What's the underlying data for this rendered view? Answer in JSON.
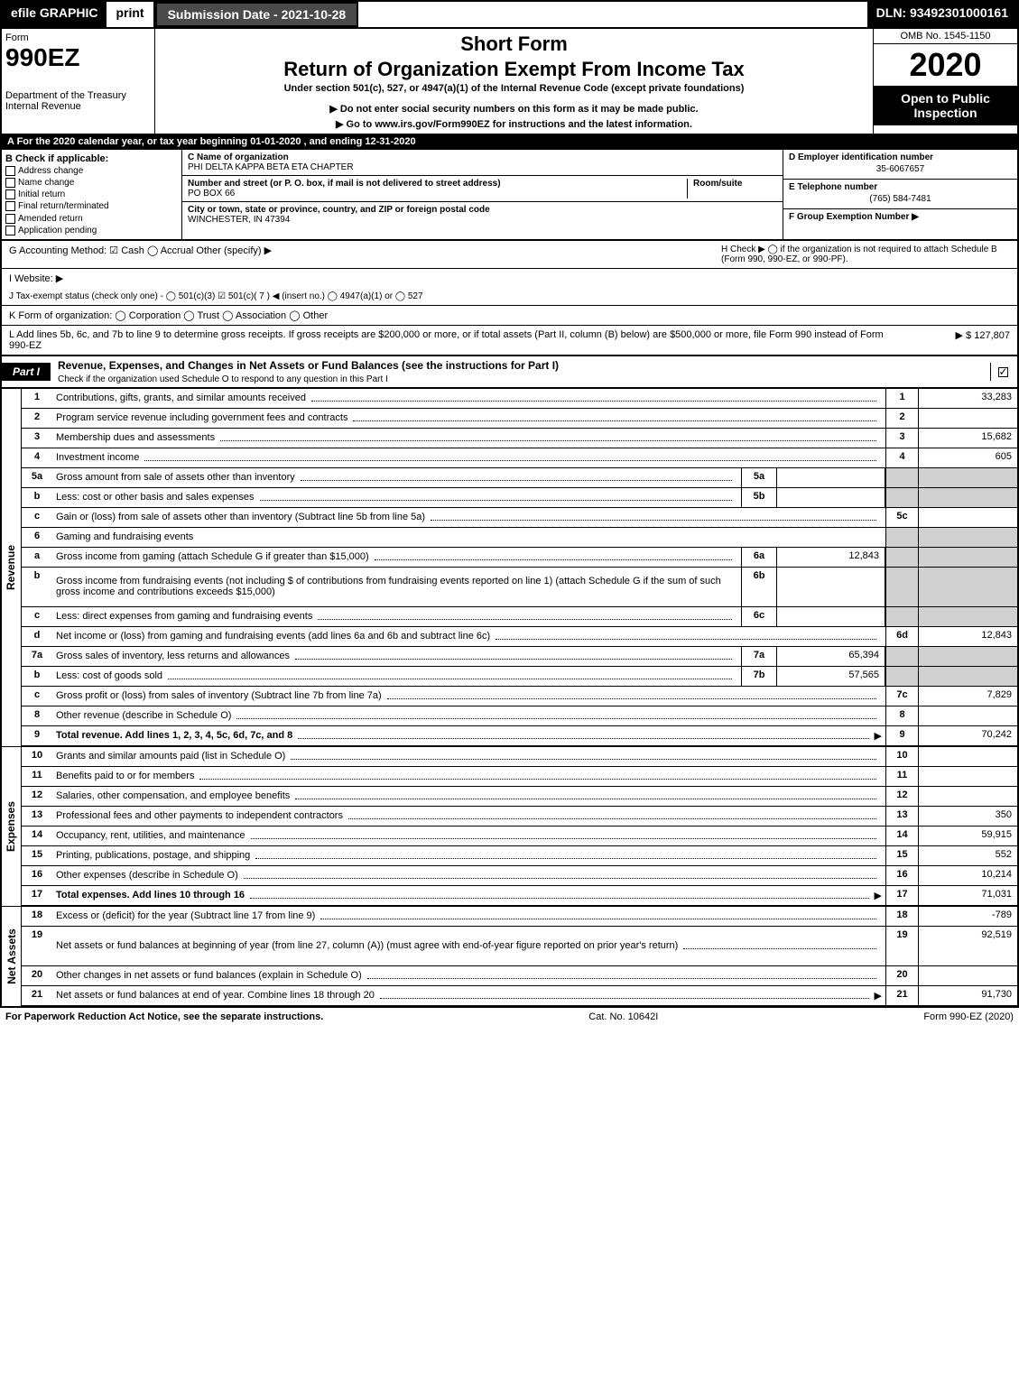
{
  "topbar": {
    "efile": "efile GRAPHIC",
    "print": "print",
    "subdate": "Submission Date - 2021-10-28",
    "dln": "DLN: 93492301000161"
  },
  "header": {
    "form_word": "Form",
    "form_num": "990EZ",
    "dept": "Department of the Treasury\nInternal Revenue",
    "title1": "Short Form",
    "title2": "Return of Organization Exempt From Income Tax",
    "sub": "Under section 501(c), 527, or 4947(a)(1) of the Internal Revenue Code (except private foundations)",
    "note": "▶ Do not enter social security numbers on this form as it may be made public.",
    "link": "▶ Go to www.irs.gov/Form990EZ for instructions and the latest information.",
    "omb": "OMB No. 1545-1150",
    "year": "2020",
    "open": "Open to Public Inspection"
  },
  "line_a": "A For the 2020 calendar year, or tax year beginning 01-01-2020 , and ending 12-31-2020",
  "box_b": {
    "header": "B Check if applicable:",
    "items": [
      "Address change",
      "Name change",
      "Initial return",
      "Final return/terminated",
      "Amended return",
      "Application pending"
    ]
  },
  "box_c": {
    "lbl": "C Name of organization",
    "name": "PHI DELTA KAPPA BETA ETA CHAPTER",
    "addr_lbl": "Number and street (or P. O. box, if mail is not delivered to street address)",
    "addr": "PO BOX 66",
    "room_lbl": "Room/suite",
    "city_lbl": "City or town, state or province, country, and ZIP or foreign postal code",
    "city": "WINCHESTER, IN  47394"
  },
  "box_d": {
    "lbl": "D Employer identification number",
    "val": "35-6067657"
  },
  "box_e": {
    "lbl": "E Telephone number",
    "val": "(765) 584-7481"
  },
  "box_f": {
    "lbl": "F Group Exemption Number ▶",
    "val": ""
  },
  "box_g": "G Accounting Method:  ☑ Cash  ◯ Accrual  Other (specify) ▶",
  "box_h": "H  Check ▶ ◯ if the organization is not required to attach Schedule B (Form 990, 990-EZ, or 990-PF).",
  "box_i": "I Website: ▶",
  "box_j": "J Tax-exempt status (check only one) - ◯ 501(c)(3)  ☑ 501(c)( 7 ) ◀ (insert no.)  ◯ 4947(a)(1) or  ◯ 527",
  "box_k": "K Form of organization:  ◯ Corporation  ◯ Trust  ◯ Association  ◯ Other",
  "box_l": {
    "text": "L Add lines 5b, 6c, and 7b to line 9 to determine gross receipts. If gross receipts are $200,000 or more, or if total assets (Part II, column (B) below) are $500,000 or more, file Form 990 instead of Form 990-EZ",
    "val": "▶ $ 127,807"
  },
  "part1": {
    "tag": "Part I",
    "title": "Revenue, Expenses, and Changes in Net Assets or Fund Balances (see the instructions for Part I)",
    "sub": "Check if the organization used Schedule O to respond to any question in this Part I",
    "checked": true
  },
  "revenue_label": "Revenue",
  "expenses_label": "Expenses",
  "netassets_label": "Net Assets",
  "rows": [
    {
      "n": "1",
      "d": "Contributions, gifts, grants, and similar amounts received",
      "rn": "1",
      "rv": "33,283"
    },
    {
      "n": "2",
      "d": "Program service revenue including government fees and contracts",
      "rn": "2",
      "rv": ""
    },
    {
      "n": "3",
      "d": "Membership dues and assessments",
      "rn": "3",
      "rv": "15,682"
    },
    {
      "n": "4",
      "d": "Investment income",
      "rn": "4",
      "rv": "605"
    },
    {
      "n": "5a",
      "d": "Gross amount from sale of assets other than inventory",
      "mn": "5a",
      "mv": "",
      "grey": true
    },
    {
      "n": "b",
      "d": "Less: cost or other basis and sales expenses",
      "mn": "5b",
      "mv": "",
      "grey": true
    },
    {
      "n": "c",
      "d": "Gain or (loss) from sale of assets other than inventory (Subtract line 5b from line 5a)",
      "rn": "5c",
      "rv": ""
    },
    {
      "n": "6",
      "d": "Gaming and fundraising events",
      "greyrow": true
    },
    {
      "n": "a",
      "d": "Gross income from gaming (attach Schedule G if greater than $15,000)",
      "mn": "6a",
      "mv": "12,843",
      "grey": true
    },
    {
      "n": "b",
      "d": "Gross income from fundraising events (not including $           of contributions from fundraising events reported on line 1) (attach Schedule G if the sum of such gross income and contributions exceeds $15,000)",
      "mn": "6b",
      "mv": "",
      "grey": true,
      "tall": true
    },
    {
      "n": "c",
      "d": "Less: direct expenses from gaming and fundraising events",
      "mn": "6c",
      "mv": "",
      "grey": true
    },
    {
      "n": "d",
      "d": "Net income or (loss) from gaming and fundraising events (add lines 6a and 6b and subtract line 6c)",
      "rn": "6d",
      "rv": "12,843"
    },
    {
      "n": "7a",
      "d": "Gross sales of inventory, less returns and allowances",
      "mn": "7a",
      "mv": "65,394",
      "grey": true
    },
    {
      "n": "b",
      "d": "Less: cost of goods sold",
      "mn": "7b",
      "mv": "57,565",
      "grey": true
    },
    {
      "n": "c",
      "d": "Gross profit or (loss) from sales of inventory (Subtract line 7b from line 7a)",
      "rn": "7c",
      "rv": "7,829"
    },
    {
      "n": "8",
      "d": "Other revenue (describe in Schedule O)",
      "rn": "8",
      "rv": ""
    },
    {
      "n": "9",
      "d": "Total revenue. Add lines 1, 2, 3, 4, 5c, 6d, 7c, and 8",
      "rn": "9",
      "rv": "70,242",
      "bold": true,
      "arrow": true
    }
  ],
  "exp_rows": [
    {
      "n": "10",
      "d": "Grants and similar amounts paid (list in Schedule O)",
      "rn": "10",
      "rv": ""
    },
    {
      "n": "11",
      "d": "Benefits paid to or for members",
      "rn": "11",
      "rv": ""
    },
    {
      "n": "12",
      "d": "Salaries, other compensation, and employee benefits",
      "rn": "12",
      "rv": ""
    },
    {
      "n": "13",
      "d": "Professional fees and other payments to independent contractors",
      "rn": "13",
      "rv": "350"
    },
    {
      "n": "14",
      "d": "Occupancy, rent, utilities, and maintenance",
      "rn": "14",
      "rv": "59,915"
    },
    {
      "n": "15",
      "d": "Printing, publications, postage, and shipping",
      "rn": "15",
      "rv": "552"
    },
    {
      "n": "16",
      "d": "Other expenses (describe in Schedule O)",
      "rn": "16",
      "rv": "10,214"
    },
    {
      "n": "17",
      "d": "Total expenses. Add lines 10 through 16",
      "rn": "17",
      "rv": "71,031",
      "bold": true,
      "arrow": true
    }
  ],
  "net_rows": [
    {
      "n": "18",
      "d": "Excess or (deficit) for the year (Subtract line 17 from line 9)",
      "rn": "18",
      "rv": "-789"
    },
    {
      "n": "19",
      "d": "Net assets or fund balances at beginning of year (from line 27, column (A)) (must agree with end-of-year figure reported on prior year's return)",
      "rn": "19",
      "rv": "92,519",
      "tall": true
    },
    {
      "n": "20",
      "d": "Other changes in net assets or fund balances (explain in Schedule O)",
      "rn": "20",
      "rv": ""
    },
    {
      "n": "21",
      "d": "Net assets or fund balances at end of year. Combine lines 18 through 20",
      "rn": "21",
      "rv": "91,730",
      "arrow": true
    }
  ],
  "footer": {
    "left": "For Paperwork Reduction Act Notice, see the separate instructions.",
    "mid": "Cat. No. 10642I",
    "right": "Form 990-EZ (2020)"
  },
  "colors": {
    "black": "#000000",
    "white": "#ffffff",
    "darkgrey": "#4a4a4a",
    "lightgrey": "#d0d0d0"
  }
}
